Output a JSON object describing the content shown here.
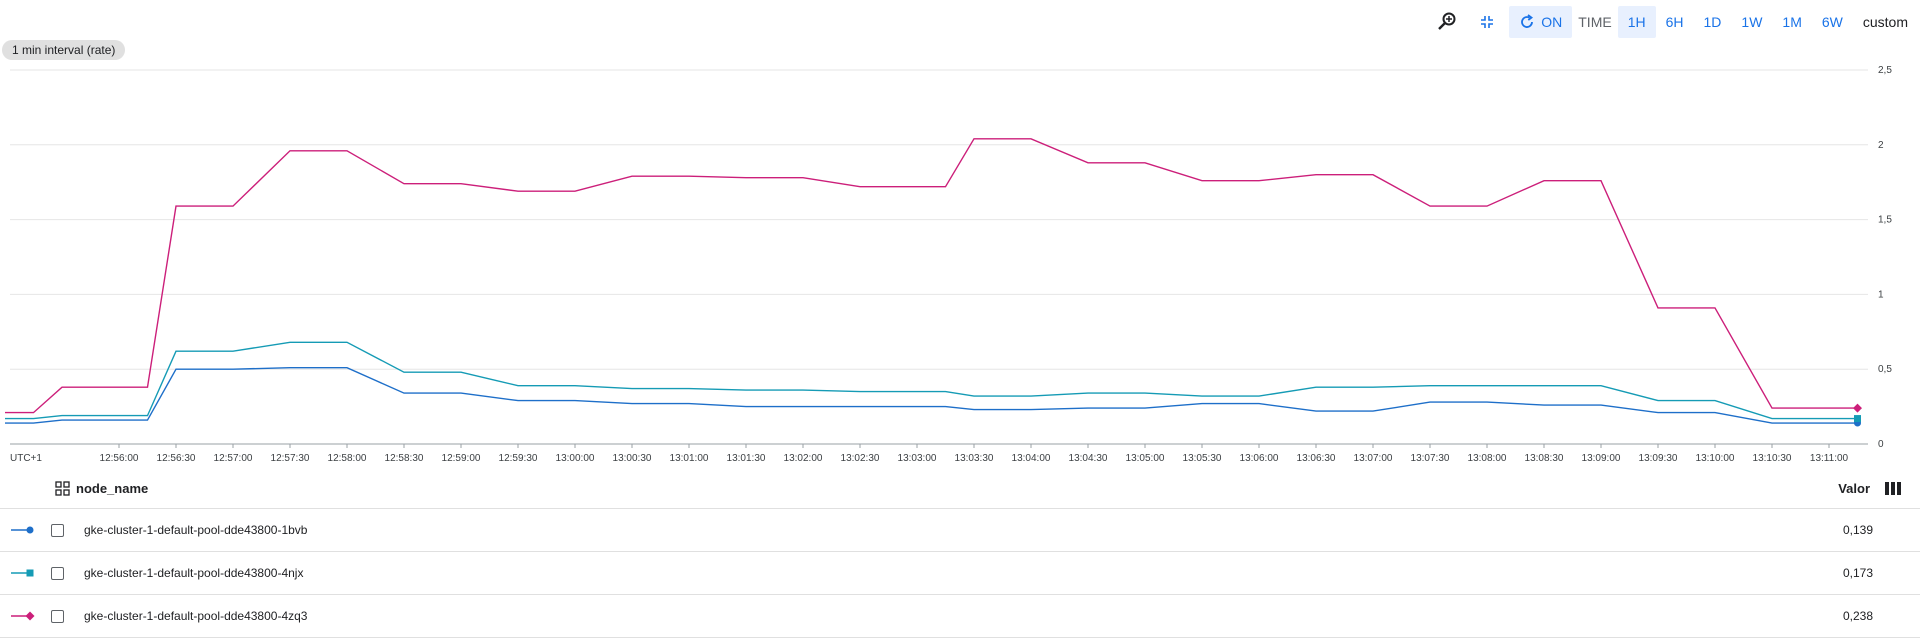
{
  "toolbar": {
    "search_icon": "search-zoom-icon",
    "compress_icon": "compress-icon",
    "refresh_icon": "refresh-icon",
    "auto_refresh_label": "ON",
    "time_label": "TIME",
    "ranges": [
      "1H",
      "6H",
      "1D",
      "1W",
      "1M",
      "6W"
    ],
    "active_range": "1H",
    "custom_label": "custom"
  },
  "interval_label": "1 min interval (rate)",
  "chart_data": {
    "type": "line",
    "timezone_label": "UTC+1",
    "x_ticks": [
      "12:56:00",
      "12:56:30",
      "12:57:00",
      "12:57:30",
      "12:58:00",
      "12:58:30",
      "12:59:00",
      "12:59:30",
      "13:00:00",
      "13:00:30",
      "13:01:00",
      "13:01:30",
      "13:02:00",
      "13:02:30",
      "13:03:00",
      "13:03:30",
      "13:04:00",
      "13:04:30",
      "13:05:00",
      "13:05:30",
      "13:06:00",
      "13:06:30",
      "13:07:00",
      "13:07:30",
      "13:08:00",
      "13:08:30",
      "13:09:00",
      "13:09:30",
      "13:10:00",
      "13:10:30",
      "13:11:00"
    ],
    "y_ticks": [
      "0",
      "0,5",
      "1",
      "1,5",
      "2",
      "2,5"
    ],
    "ylim": [
      0,
      2.5
    ],
    "grid": true,
    "x": [
      "12:55:00",
      "12:55:15",
      "12:55:30",
      "12:56:00",
      "12:56:15",
      "12:56:30",
      "12:57:00",
      "12:57:30",
      "12:58:00",
      "12:58:30",
      "12:59:00",
      "12:59:30",
      "13:00:00",
      "13:00:30",
      "13:01:00",
      "13:01:30",
      "13:02:00",
      "13:02:30",
      "13:03:00",
      "13:03:15",
      "13:03:30",
      "13:04:00",
      "13:04:30",
      "13:05:00",
      "13:05:30",
      "13:06:00",
      "13:06:30",
      "13:07:00",
      "13:07:30",
      "13:08:00",
      "13:08:30",
      "13:09:00",
      "13:09:30",
      "13:10:00",
      "13:10:30",
      "13:11:00",
      "13:11:15"
    ],
    "series": [
      {
        "name": "gke-cluster-1-default-pool-dde43800-1bvb",
        "color": "#1e6fc9",
        "marker": "circle",
        "values": [
          0.14,
          0.14,
          0.16,
          0.16,
          0.16,
          0.5,
          0.5,
          0.51,
          0.51,
          0.34,
          0.34,
          0.29,
          0.29,
          0.27,
          0.27,
          0.25,
          0.25,
          0.25,
          0.25,
          0.25,
          0.23,
          0.23,
          0.24,
          0.24,
          0.27,
          0.27,
          0.22,
          0.22,
          0.28,
          0.28,
          0.26,
          0.26,
          0.21,
          0.21,
          0.14,
          0.14,
          0.14
        ]
      },
      {
        "name": "gke-cluster-1-default-pool-dde43800-4njx",
        "color": "#159bb5",
        "marker": "square",
        "values": [
          0.17,
          0.17,
          0.19,
          0.19,
          0.19,
          0.62,
          0.62,
          0.68,
          0.68,
          0.48,
          0.48,
          0.39,
          0.39,
          0.37,
          0.37,
          0.36,
          0.36,
          0.35,
          0.35,
          0.35,
          0.32,
          0.32,
          0.34,
          0.34,
          0.32,
          0.32,
          0.38,
          0.38,
          0.39,
          0.39,
          0.39,
          0.39,
          0.29,
          0.29,
          0.17,
          0.17,
          0.17
        ]
      },
      {
        "name": "gke-cluster-1-default-pool-dde43800-4zq3",
        "color": "#cc1f7a",
        "marker": "diamond",
        "values": [
          0.21,
          0.21,
          0.38,
          0.38,
          0.38,
          1.59,
          1.59,
          1.96,
          1.96,
          1.74,
          1.74,
          1.69,
          1.69,
          1.79,
          1.79,
          1.78,
          1.78,
          1.72,
          1.72,
          1.72,
          2.04,
          2.04,
          1.88,
          1.88,
          1.76,
          1.76,
          1.8,
          1.8,
          1.59,
          1.59,
          1.76,
          1.76,
          0.91,
          0.91,
          0.24,
          0.24,
          0.24
        ]
      }
    ]
  },
  "legend": {
    "group_icon": "group-by-icon",
    "name_header": "node_name",
    "value_header": "Valor",
    "columns_icon": "columns-icon",
    "rows": [
      {
        "name": "gke-cluster-1-default-pool-dde43800-1bvb",
        "value": "0,139",
        "color": "#1e6fc9",
        "marker": "circle"
      },
      {
        "name": "gke-cluster-1-default-pool-dde43800-4njx",
        "value": "0,173",
        "color": "#159bb5",
        "marker": "square"
      },
      {
        "name": "gke-cluster-1-default-pool-dde43800-4zq3",
        "value": "0,238",
        "color": "#cc1f7a",
        "marker": "diamond"
      }
    ]
  }
}
